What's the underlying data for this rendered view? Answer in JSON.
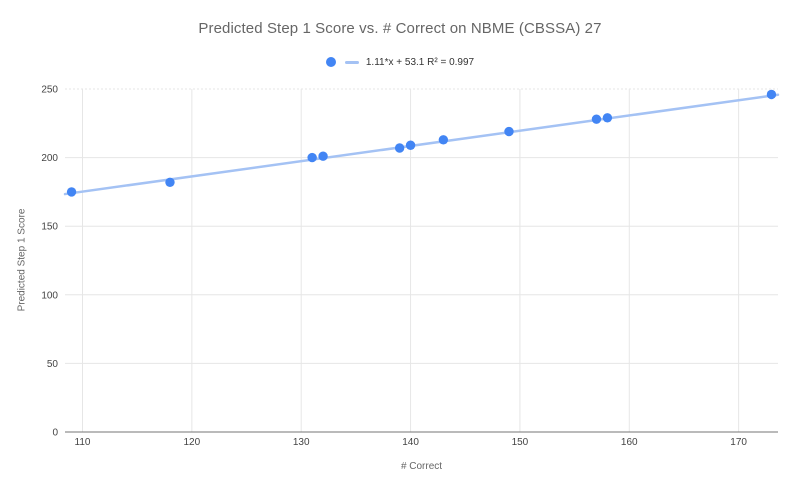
{
  "chart_data": {
    "type": "scatter",
    "title": "Predicted Step 1 Score vs. # Correct on NBME (CBSSA) 27",
    "xlabel": "# Correct",
    "ylabel": "Predicted Step 1 Score",
    "legend": {
      "position": "top",
      "label": "1.11*x + 53.1 R² = 0.997"
    },
    "points": [
      {
        "x": 109,
        "y": 175
      },
      {
        "x": 118,
        "y": 182
      },
      {
        "x": 131,
        "y": 200
      },
      {
        "x": 132,
        "y": 201
      },
      {
        "x": 139,
        "y": 207
      },
      {
        "x": 140,
        "y": 209
      },
      {
        "x": 143,
        "y": 213
      },
      {
        "x": 149,
        "y": 219
      },
      {
        "x": 157,
        "y": 228
      },
      {
        "x": 158,
        "y": 229
      },
      {
        "x": 173,
        "y": 246
      }
    ],
    "trendline": {
      "type": "linear",
      "slope": 1.11,
      "intercept": 53.1,
      "r_squared": 0.997
    },
    "xlim": [
      108.4,
      173.6
    ],
    "ylim": [
      0,
      250
    ],
    "xticks": [
      110,
      120,
      130,
      140,
      150,
      160,
      170
    ],
    "yticks": [
      0,
      50,
      100,
      150,
      200,
      250
    ],
    "grid": true,
    "colors": {
      "point": "#4285f4",
      "trendline": "#a4c2f4",
      "gridline": "#e6e6e6",
      "axis_line": "#757575",
      "title_text": "#666666",
      "axis_title_text": "#666666",
      "tick_text": "#444444",
      "legend_text": "#333333",
      "background": "#ffffff"
    }
  }
}
